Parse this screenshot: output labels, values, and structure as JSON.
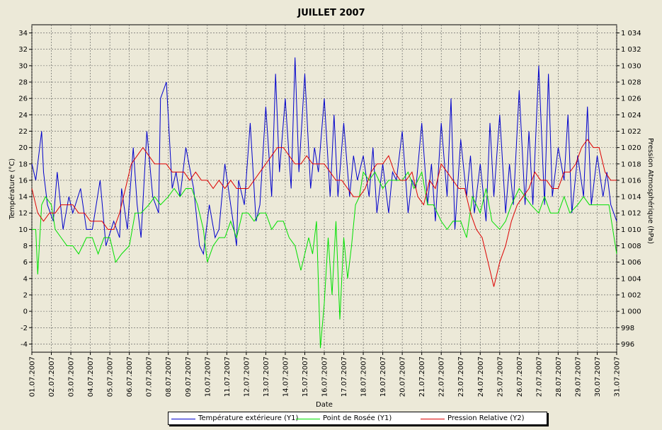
{
  "chart_data": {
    "type": "line",
    "title": "JUILLET  2007",
    "xlabel": "Date",
    "ylabel_left": "Température (°C)",
    "ylabel_right": "Pression Atmosphérique (hPa)",
    "x_tick_labels": [
      "01.07.2007",
      "02.07.2007",
      "03.07.2007",
      "04.07.2007",
      "05.07.2007",
      "06.07.2007",
      "07.07.2007",
      "08.07.2007",
      "09.07.2007",
      "10.07.2007",
      "11.07.2007",
      "12.07.2007",
      "13.07.2007",
      "14.07.2007",
      "15.07.2007",
      "16.07.2007",
      "17.07.2007",
      "18.07.2007",
      "19.07.2007",
      "20.07.2007",
      "21.07.2007",
      "22.07.2007",
      "23.07.2007",
      "24.07.2007",
      "25.07.2007",
      "26.07.2007",
      "27.07.2007",
      "28.07.2007",
      "29.07.2007",
      "30.07.2007",
      "31.07.2007"
    ],
    "y_left_ticks": [
      "34",
      "32",
      "30",
      "28",
      "26",
      "24",
      "22",
      "20",
      "18",
      "16",
      "14",
      "12",
      "10",
      "8",
      "6",
      "4",
      "2",
      "0",
      "-2",
      "-4"
    ],
    "y_right_ticks": [
      "1 034",
      "1 032",
      "1 030",
      "1 028",
      "1 026",
      "1 024",
      "1 022",
      "1 020",
      "1 018",
      "1 016",
      "1 014",
      "1 012",
      "1 010",
      "1 008",
      "1 006",
      "1 004",
      "1 002",
      "1 000",
      "998",
      "996"
    ],
    "y_left_range": [
      -5,
      35
    ],
    "y_right_range": [
      995,
      1035
    ],
    "x_range_days": [
      0,
      30
    ],
    "grid": true,
    "legend_position": "bottom",
    "series": [
      {
        "name": "Température extérieure (Y1)",
        "axis": "left",
        "color": "#0000cc",
        "x": [
          0,
          0.2,
          0.5,
          0.6,
          0.8,
          1.1,
          1.3,
          1.6,
          1.9,
          2.1,
          2.5,
          2.8,
          3.1,
          3.5,
          3.8,
          4.2,
          4.5,
          4.6,
          4.9,
          5.2,
          5.4,
          5.6,
          5.9,
          6.2,
          6.5,
          6.6,
          6.9,
          7.2,
          7.4,
          7.6,
          7.9,
          8.3,
          8.6,
          8.8,
          9.1,
          9.4,
          9.6,
          9.9,
          10.2,
          10.5,
          10.6,
          10.9,
          11.2,
          11.5,
          11.7,
          12.0,
          12.3,
          12.5,
          12.7,
          13.0,
          13.3,
          13.5,
          13.7,
          14.0,
          14.3,
          14.5,
          14.7,
          15.0,
          15.3,
          15.5,
          15.7,
          16.0,
          16.3,
          16.5,
          16.7,
          17.0,
          17.3,
          17.5,
          17.7,
          18.0,
          18.3,
          18.5,
          18.7,
          19.0,
          19.3,
          19.5,
          19.7,
          20.0,
          20.3,
          20.5,
          20.7,
          21.0,
          21.3,
          21.5,
          21.7,
          22.0,
          22.3,
          22.5,
          22.7,
          23.0,
          23.3,
          23.5,
          23.7,
          24.0,
          24.3,
          24.5,
          24.7,
          25.0,
          25.3,
          25.5,
          25.7,
          26.0,
          26.3,
          26.5,
          26.7,
          27.0,
          27.3,
          27.5,
          27.7,
          28.0,
          28.3,
          28.5,
          28.7,
          29.0,
          29.3,
          29.5,
          29.7,
          30.0
        ],
        "y": [
          18,
          16,
          22,
          17,
          13,
          11,
          17,
          10,
          14,
          12,
          15,
          10,
          10,
          16,
          8,
          11,
          9,
          15,
          10,
          20,
          13,
          9,
          22,
          14,
          12,
          26,
          28,
          15,
          17,
          14,
          20,
          15,
          8,
          7,
          13,
          9,
          10,
          18,
          13,
          8,
          16,
          13,
          23,
          11,
          13,
          25,
          14,
          29,
          17,
          26,
          15,
          31,
          17,
          29,
          15,
          20,
          17,
          26,
          14,
          24,
          14,
          23,
          14,
          19,
          16,
          19,
          14,
          20,
          12,
          18,
          12,
          17,
          16,
          22,
          12,
          16,
          15,
          23,
          13,
          18,
          11,
          23,
          14,
          26,
          10,
          21,
          14,
          19,
          12,
          18,
          11,
          23,
          14,
          24,
          12,
          18,
          13,
          27,
          13,
          22,
          13,
          30,
          13,
          29,
          14,
          20,
          16,
          24,
          12,
          19,
          14,
          25,
          13,
          19,
          14,
          17,
          13,
          11
        ]
      },
      {
        "name": "Point de Rosée (Y1)",
        "axis": "left",
        "color": "#00e000",
        "x": [
          0,
          0.2,
          0.3,
          0.5,
          0.7,
          1.0,
          1.2,
          1.5,
          1.8,
          2.1,
          2.4,
          2.8,
          3.1,
          3.4,
          3.7,
          4.0,
          4.3,
          4.6,
          5.0,
          5.3,
          5.6,
          6.0,
          6.3,
          6.6,
          7.0,
          7.3,
          7.6,
          7.9,
          8.2,
          8.5,
          8.8,
          9.0,
          9.3,
          9.6,
          9.9,
          10.2,
          10.5,
          10.8,
          11.1,
          11.4,
          11.7,
          12.0,
          12.3,
          12.6,
          12.9,
          13.2,
          13.5,
          13.8,
          14.0,
          14.2,
          14.4,
          14.6,
          14.8,
          15.0,
          15.2,
          15.4,
          15.6,
          15.8,
          16.0,
          16.2,
          16.4,
          16.6,
          16.8,
          17.0,
          17.3,
          17.6,
          18.0,
          18.3,
          18.6,
          19.0,
          19.3,
          19.6,
          20.0,
          20.3,
          20.6,
          21.0,
          21.3,
          21.6,
          22.0,
          22.3,
          22.6,
          23.0,
          23.3,
          23.6,
          24.0,
          24.3,
          24.6,
          25.0,
          25.3,
          25.6,
          26.0,
          26.3,
          26.6,
          27.0,
          27.3,
          27.6,
          28.0,
          28.3,
          28.6,
          29.0,
          29.3,
          29.6,
          29.8,
          30.0
        ],
        "y": [
          10,
          10,
          4.5,
          13,
          14,
          13,
          10,
          9,
          8,
          8,
          7,
          9,
          9,
          7,
          9,
          9,
          6,
          7,
          8,
          12,
          12,
          13,
          14,
          13,
          14,
          15,
          14,
          15,
          15,
          13,
          10,
          6,
          8,
          9,
          9,
          11,
          9,
          12,
          12,
          11,
          12,
          12,
          10,
          11,
          11,
          9,
          8,
          5,
          7,
          9,
          7,
          11,
          -4.5,
          1,
          9,
          2,
          11,
          -1,
          9,
          4,
          8,
          13,
          14,
          17,
          16,
          17,
          15,
          16,
          16,
          16,
          17,
          15,
          17,
          13,
          13,
          11,
          10,
          11,
          11,
          9,
          14,
          12,
          15,
          11,
          10,
          11,
          13,
          15,
          14,
          13,
          12,
          14,
          12,
          12,
          14,
          12,
          13,
          14,
          13,
          13,
          13,
          13,
          10,
          7
        ]
      },
      {
        "name": "Pression Relative (Y2)",
        "axis": "right",
        "color": "#dd0000",
        "x": [
          0,
          0.3,
          0.6,
          0.9,
          1.2,
          1.5,
          1.8,
          2.1,
          2.4,
          2.7,
          3.0,
          3.3,
          3.6,
          3.9,
          4.2,
          4.5,
          4.8,
          5.1,
          5.4,
          5.7,
          6.0,
          6.3,
          6.6,
          6.9,
          7.2,
          7.5,
          7.8,
          8.1,
          8.4,
          8.7,
          9.0,
          9.3,
          9.6,
          9.9,
          10.2,
          10.5,
          10.8,
          11.1,
          11.4,
          11.7,
          12.0,
          12.3,
          12.6,
          12.9,
          13.2,
          13.5,
          13.8,
          14.1,
          14.4,
          14.7,
          15.0,
          15.3,
          15.6,
          15.9,
          16.2,
          16.5,
          16.8,
          17.1,
          17.4,
          17.7,
          18.0,
          18.3,
          18.6,
          18.9,
          19.2,
          19.5,
          19.8,
          20.1,
          20.4,
          20.7,
          21.0,
          21.3,
          21.6,
          21.9,
          22.2,
          22.5,
          22.8,
          23.1,
          23.4,
          23.7,
          24.0,
          24.3,
          24.6,
          24.9,
          25.2,
          25.5,
          25.8,
          26.1,
          26.4,
          26.7,
          27.0,
          27.3,
          27.6,
          27.9,
          28.2,
          28.5,
          28.8,
          29.1,
          29.4,
          29.7,
          30.0
        ],
        "y": [
          1015,
          1012,
          1011,
          1012,
          1012,
          1013,
          1013,
          1013,
          1012,
          1012,
          1011,
          1011,
          1011,
          1010,
          1010,
          1012,
          1015,
          1018,
          1019,
          1020,
          1019,
          1018,
          1018,
          1018,
          1017,
          1017,
          1017,
          1016,
          1017,
          1016,
          1016,
          1015,
          1016,
          1015,
          1016,
          1015,
          1015,
          1015,
          1016,
          1017,
          1018,
          1019,
          1020,
          1020,
          1019,
          1018,
          1018,
          1019,
          1018,
          1018,
          1018,
          1017,
          1016,
          1016,
          1015,
          1014,
          1014,
          1015,
          1017,
          1018,
          1018,
          1019,
          1017,
          1016,
          1016,
          1017,
          1014,
          1013,
          1016,
          1015,
          1018,
          1017,
          1016,
          1015,
          1015,
          1012,
          1010,
          1009,
          1006,
          1003,
          1006,
          1008,
          1011,
          1013,
          1014,
          1015,
          1017,
          1016,
          1016,
          1015,
          1015,
          1017,
          1017,
          1018,
          1020,
          1021,
          1020,
          1020,
          1017,
          1016,
          1016
        ]
      }
    ]
  }
}
